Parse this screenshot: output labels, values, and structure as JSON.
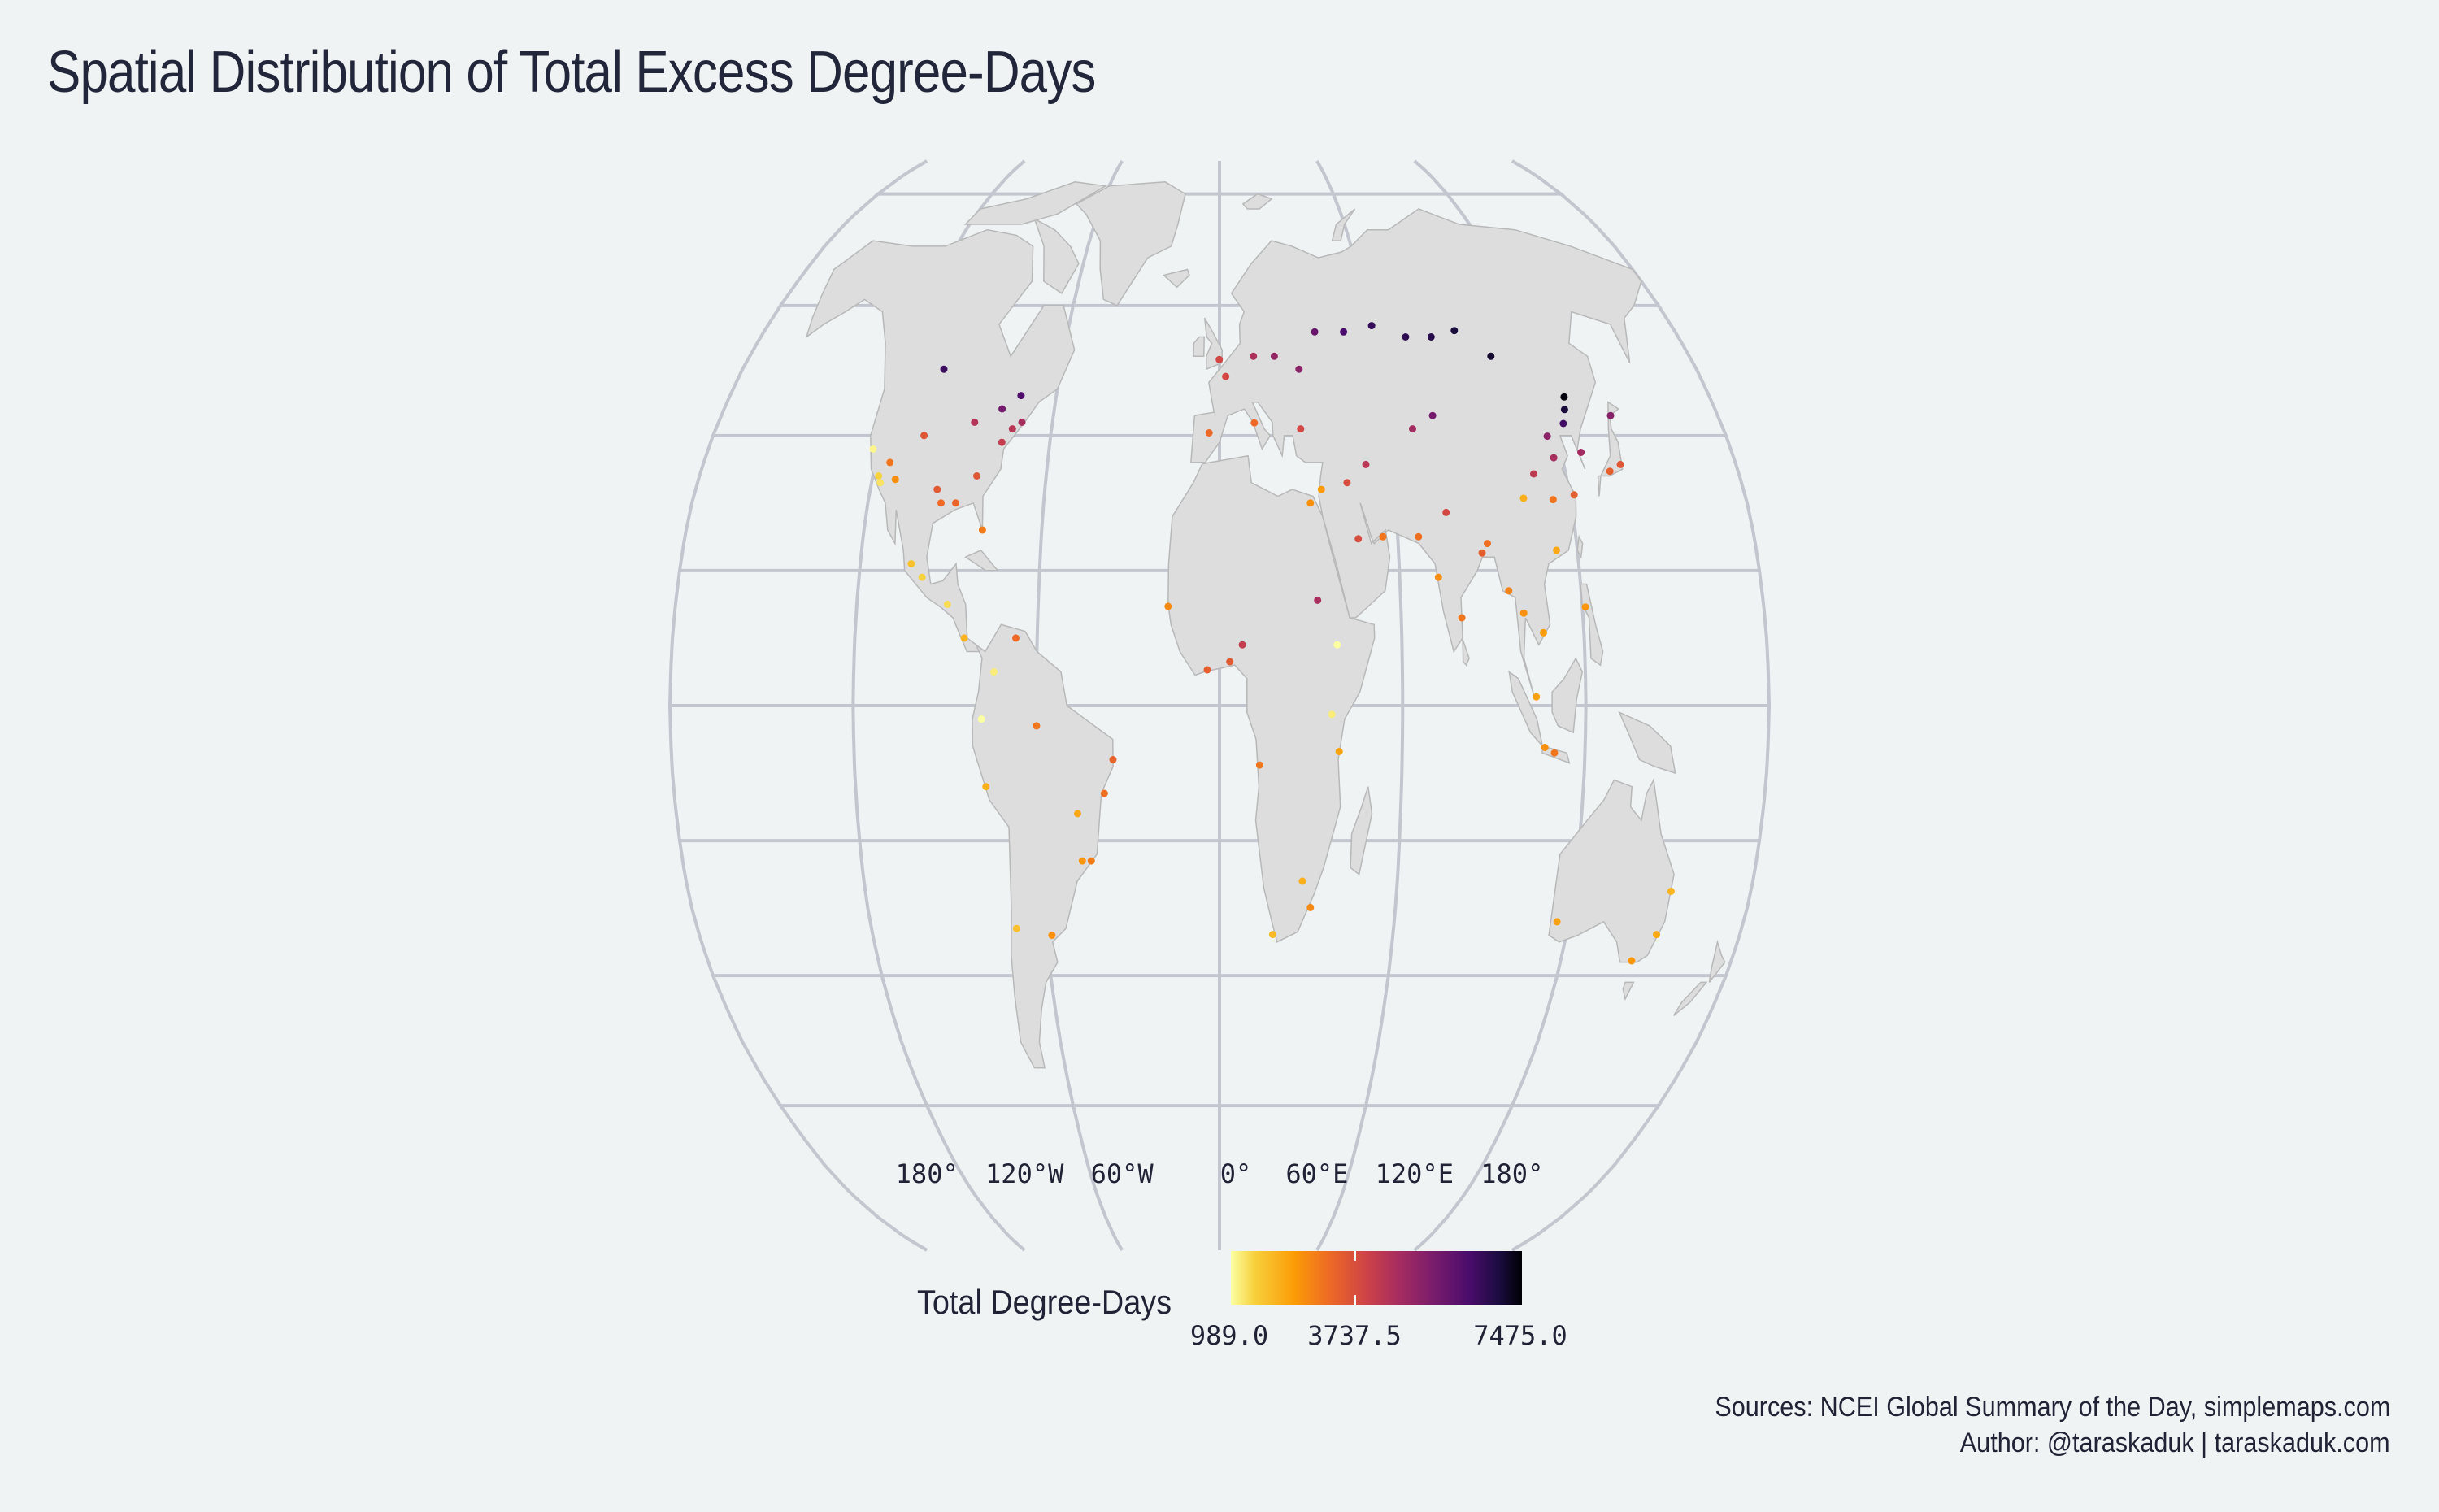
{
  "title": "Spatial Distribution of Total Excess Degree-Days",
  "longitude_labels": [
    "180°",
    "120°W",
    "60°W",
    "0°",
    "60°E",
    "120°E",
    "180°"
  ],
  "legend": {
    "title": "Total Degree-Days",
    "ticks": [
      "989.0",
      "3737.5",
      "7475.0"
    ],
    "min": 989.0,
    "max": 7475.0,
    "colormap": "inferno (reversed)"
  },
  "sources": "Sources: NCEI Global Summary of the Day, simplemaps.com",
  "author": "Author: @taraskaduk | taraskaduk.com",
  "colors": {
    "background": "#eff3f3",
    "land": "#dddddd",
    "graticule": "#c4c6cf",
    "low": "#fcffa4",
    "mid": "#ed6925",
    "high": "#000004"
  },
  "projection": "Robinson",
  "chart_data": {
    "type": "scatter",
    "title": "Spatial Distribution of Total Excess Degree-Days",
    "xlabel": "",
    "ylabel": "",
    "color_scale": {
      "min": 989.0,
      "max": 7475.0
    },
    "points": [
      {
        "lon": -122,
        "lat": 38,
        "value": 1100
      },
      {
        "lon": -118,
        "lat": 34,
        "value": 1500
      },
      {
        "lon": -117,
        "lat": 33,
        "value": 1300
      },
      {
        "lon": -112,
        "lat": 33.5,
        "value": 2600
      },
      {
        "lon": -115,
        "lat": 36,
        "value": 3000
      },
      {
        "lon": -105,
        "lat": 40,
        "value": 3600
      },
      {
        "lon": -104,
        "lat": 50,
        "value": 6500
      },
      {
        "lon": -97,
        "lat": 32,
        "value": 3500
      },
      {
        "lon": -95,
        "lat": 30,
        "value": 3200
      },
      {
        "lon": -90,
        "lat": 30,
        "value": 3300
      },
      {
        "lon": -88,
        "lat": 42,
        "value": 4500
      },
      {
        "lon": -84,
        "lat": 34,
        "value": 3600
      },
      {
        "lon": -80,
        "lat": 26,
        "value": 2900
      },
      {
        "lon": -77,
        "lat": 39,
        "value": 4200
      },
      {
        "lon": -74,
        "lat": 41,
        "value": 4400
      },
      {
        "lon": -71,
        "lat": 42,
        "value": 4700
      },
      {
        "lon": -79,
        "lat": 44,
        "value": 5600
      },
      {
        "lon": -73,
        "lat": 46,
        "value": 6200
      },
      {
        "lon": -99,
        "lat": 19,
        "value": 1500
      },
      {
        "lon": -103,
        "lat": 21,
        "value": 1800
      },
      {
        "lon": -90,
        "lat": 15,
        "value": 1400
      },
      {
        "lon": -84,
        "lat": 10,
        "value": 2000
      },
      {
        "lon": -74,
        "lat": 5,
        "value": 1200
      },
      {
        "lon": -67,
        "lat": 10,
        "value": 3200
      },
      {
        "lon": -78,
        "lat": -2,
        "value": 1000
      },
      {
        "lon": -77,
        "lat": -12,
        "value": 2100
      },
      {
        "lon": -47,
        "lat": -16,
        "value": 2200
      },
      {
        "lon": -46,
        "lat": -23,
        "value": 2500
      },
      {
        "lon": -43,
        "lat": -23,
        "value": 2900
      },
      {
        "lon": -38,
        "lat": -13,
        "value": 3100
      },
      {
        "lon": -35,
        "lat": -8,
        "value": 3300
      },
      {
        "lon": -58,
        "lat": -34,
        "value": 2600
      },
      {
        "lon": -60,
        "lat": -3,
        "value": 3000
      },
      {
        "lon": -70,
        "lat": -33,
        "value": 1800
      },
      {
        "lon": -0.1,
        "lat": 51.5,
        "value": 3900
      },
      {
        "lon": 2.3,
        "lat": 48.9,
        "value": 3900
      },
      {
        "lon": -3.7,
        "lat": 40.4,
        "value": 3200
      },
      {
        "lon": 13,
        "lat": 52,
        "value": 4600
      },
      {
        "lon": 12.5,
        "lat": 41.9,
        "value": 3200
      },
      {
        "lon": 21,
        "lat": 52,
        "value": 5000
      },
      {
        "lon": 30,
        "lat": 50,
        "value": 5200
      },
      {
        "lon": 37.6,
        "lat": 55.8,
        "value": 5800
      },
      {
        "lon": 49,
        "lat": 55.8,
        "value": 6300
      },
      {
        "lon": 60.6,
        "lat": 56.8,
        "value": 6600
      },
      {
        "lon": 73,
        "lat": 55,
        "value": 6700
      },
      {
        "lon": 83,
        "lat": 55,
        "value": 6800
      },
      {
        "lon": 92.9,
        "lat": 56,
        "value": 7000
      },
      {
        "lon": 104,
        "lat": 52,
        "value": 7100
      },
      {
        "lon": 29,
        "lat": 41,
        "value": 3900
      },
      {
        "lon": 31,
        "lat": 30,
        "value": 2600
      },
      {
        "lon": 35,
        "lat": 32,
        "value": 2400
      },
      {
        "lon": 44,
        "lat": 33,
        "value": 3800
      },
      {
        "lon": 51,
        "lat": 35.7,
        "value": 4400
      },
      {
        "lon": 46.7,
        "lat": 24.7,
        "value": 3800
      },
      {
        "lon": 55,
        "lat": 25,
        "value": 3000
      },
      {
        "lon": 67,
        "lat": 25,
        "value": 3100
      },
      {
        "lon": 69,
        "lat": 41,
        "value": 4800
      },
      {
        "lon": 77,
        "lat": 43,
        "value": 5600
      },
      {
        "lon": 77,
        "lat": 28.6,
        "value": 3900
      },
      {
        "lon": 72.9,
        "lat": 19,
        "value": 2600
      },
      {
        "lon": 80,
        "lat": 13,
        "value": 3000
      },
      {
        "lon": 88,
        "lat": 22.6,
        "value": 3400
      },
      {
        "lon": 90,
        "lat": 24,
        "value": 3100
      },
      {
        "lon": 96,
        "lat": 17,
        "value": 2800
      },
      {
        "lon": 100.5,
        "lat": 13.7,
        "value": 2600
      },
      {
        "lon": 106.7,
        "lat": 10.8,
        "value": 2400
      },
      {
        "lon": 103.8,
        "lat": 1.3,
        "value": 2300
      },
      {
        "lon": 106.8,
        "lat": -6.2,
        "value": 2600
      },
      {
        "lon": 110,
        "lat": -7,
        "value": 3000
      },
      {
        "lon": 121,
        "lat": 14.6,
        "value": 2500
      },
      {
        "lon": 113,
        "lat": 23,
        "value": 2200
      },
      {
        "lon": 114,
        "lat": 30.5,
        "value": 3000
      },
      {
        "lon": 121.5,
        "lat": 31.2,
        "value": 3400
      },
      {
        "lon": 104,
        "lat": 30.7,
        "value": 2100
      },
      {
        "lon": 108.9,
        "lat": 34.3,
        "value": 4300
      },
      {
        "lon": 116.4,
        "lat": 39.9,
        "value": 5200
      },
      {
        "lon": 117,
        "lat": 36.7,
        "value": 4700
      },
      {
        "lon": 123.4,
        "lat": 41.8,
        "value": 6400
      },
      {
        "lon": 125.3,
        "lat": 43.9,
        "value": 7000
      },
      {
        "lon": 126.6,
        "lat": 45.8,
        "value": 7400
      },
      {
        "lon": 127,
        "lat": 37.5,
        "value": 4800
      },
      {
        "lon": 139.7,
        "lat": 35.7,
        "value": 3600
      },
      {
        "lon": 135.5,
        "lat": 34.7,
        "value": 3400
      },
      {
        "lon": 141.3,
        "lat": 43,
        "value": 5300
      },
      {
        "lon": -17,
        "lat": 14.7,
        "value": 2700
      },
      {
        "lon": -4,
        "lat": 5.3,
        "value": 3400
      },
      {
        "lon": 3.4,
        "lat": 6.5,
        "value": 3500
      },
      {
        "lon": 7.5,
        "lat": 9,
        "value": 4200
      },
      {
        "lon": 32.5,
        "lat": 15.6,
        "value": 4700
      },
      {
        "lon": 38.7,
        "lat": 9,
        "value": 1000
      },
      {
        "lon": 36.8,
        "lat": -1.3,
        "value": 1200
      },
      {
        "lon": 39.3,
        "lat": -6.8,
        "value": 2300
      },
      {
        "lon": 28,
        "lat": -26,
        "value": 2100
      },
      {
        "lon": 18.4,
        "lat": -33.9,
        "value": 1900
      },
      {
        "lon": 31,
        "lat": -29.9,
        "value": 2700
      },
      {
        "lon": 13.2,
        "lat": -8.8,
        "value": 3000
      },
      {
        "lon": 151.2,
        "lat": -33.9,
        "value": 2200
      },
      {
        "lon": 145,
        "lat": -37.8,
        "value": 2500
      },
      {
        "lon": 153,
        "lat": -27.5,
        "value": 2000
      },
      {
        "lon": 116,
        "lat": -32,
        "value": 2300
      }
    ]
  }
}
